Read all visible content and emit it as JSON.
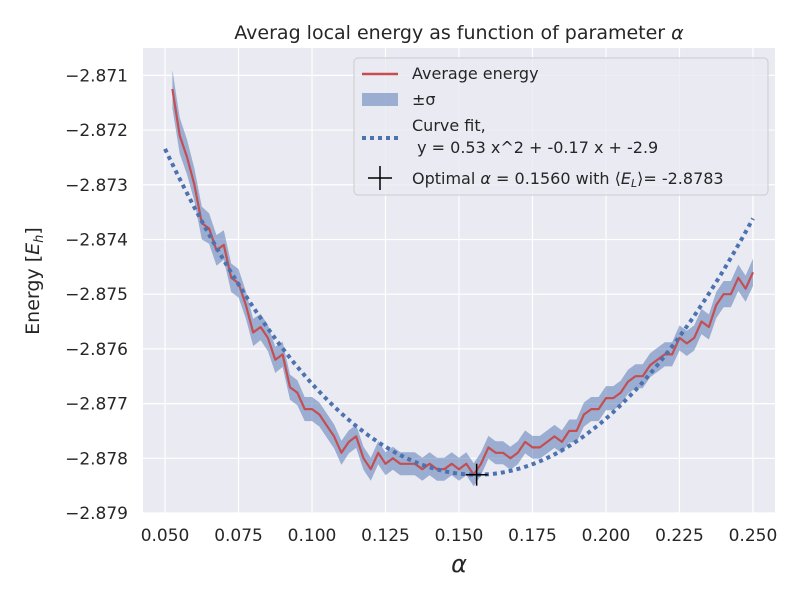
{
  "chart_data": {
    "type": "line",
    "title": "Averag local energy as function of parameter α",
    "xlabel": "α",
    "ylabel": "Energy [E_h]",
    "xlim": [
      0.0425,
      0.2575
    ],
    "ylim": [
      -2.879,
      -2.8705
    ],
    "x_ticks": [
      0.05,
      0.075,
      0.1,
      0.125,
      0.15,
      0.175,
      0.2,
      0.225,
      0.25
    ],
    "x_tick_labels": [
      "0.050",
      "0.075",
      "0.100",
      "0.125",
      "0.150",
      "0.175",
      "0.200",
      "0.225",
      "0.250"
    ],
    "y_ticks": [
      -2.879,
      -2.878,
      -2.877,
      -2.876,
      -2.875,
      -2.874,
      -2.873,
      -2.872,
      -2.871
    ],
    "y_tick_labels": [
      "−2.879",
      "−2.878",
      "−2.877",
      "−2.876",
      "−2.875",
      "−2.874",
      "−2.873",
      "−2.872",
      "−2.871"
    ],
    "grid": true,
    "legend_position": "top-right",
    "colors": {
      "background": "#eaeaf2",
      "grid": "#ffffff",
      "average": "#c44e52",
      "band": "#4c72b0",
      "fit": "#4c72b0",
      "marker": "#000000"
    },
    "series": [
      {
        "name": "Average energy",
        "x": [
          0.0525,
          0.055,
          0.0575,
          0.06,
          0.0625,
          0.065,
          0.0675,
          0.07,
          0.0725,
          0.075,
          0.0775,
          0.08,
          0.0825,
          0.085,
          0.0875,
          0.09,
          0.0925,
          0.095,
          0.0975,
          0.1,
          0.1025,
          0.105,
          0.1075,
          0.11,
          0.1125,
          0.115,
          0.1175,
          0.12,
          0.1225,
          0.125,
          0.1275,
          0.13,
          0.1325,
          0.135,
          0.1375,
          0.14,
          0.1425,
          0.145,
          0.1475,
          0.15,
          0.1525,
          0.155,
          0.1575,
          0.16,
          0.1625,
          0.165,
          0.1675,
          0.17,
          0.1725,
          0.175,
          0.1775,
          0.18,
          0.1825,
          0.185,
          0.1875,
          0.19,
          0.1925,
          0.195,
          0.1975,
          0.2,
          0.2025,
          0.205,
          0.2075,
          0.21,
          0.2125,
          0.215,
          0.2175,
          0.22,
          0.2225,
          0.225,
          0.2275,
          0.23,
          0.2325,
          0.235,
          0.2375,
          0.24,
          0.2425,
          0.245,
          0.2475,
          0.25
        ],
        "y": [
          -2.87125,
          -2.8721,
          -2.8725,
          -2.873,
          -2.8737,
          -2.8738,
          -2.8742,
          -2.8741,
          -2.8747,
          -2.8748,
          -2.8752,
          -2.8757,
          -2.8756,
          -2.8758,
          -2.8762,
          -2.8761,
          -2.8767,
          -2.8768,
          -2.8771,
          -2.8771,
          -2.8772,
          -2.8774,
          -2.8776,
          -2.8779,
          -2.8777,
          -2.8776,
          -2.878,
          -2.8782,
          -2.8779,
          -2.8781,
          -2.878,
          -2.8781,
          -2.8781,
          -2.8781,
          -2.8782,
          -2.8781,
          -2.8782,
          -2.8782,
          -2.8781,
          -2.8782,
          -2.8781,
          -2.8783,
          -2.8781,
          -2.8778,
          -2.8779,
          -2.8779,
          -2.878,
          -2.8779,
          -2.8777,
          -2.8778,
          -2.8778,
          -2.8777,
          -2.8776,
          -2.8777,
          -2.8775,
          -2.8775,
          -2.8772,
          -2.8771,
          -2.8771,
          -2.8769,
          -2.8769,
          -2.8768,
          -2.8766,
          -2.8765,
          -2.8765,
          -2.8763,
          -2.8762,
          -2.8761,
          -2.8761,
          -2.8758,
          -2.8759,
          -2.8758,
          -2.8755,
          -2.8756,
          -2.8752,
          -2.875,
          -2.875,
          -2.8747,
          -2.8749,
          -2.8746
        ],
        "std": [
          0.00035,
          0.00033,
          0.00032,
          0.0003,
          0.0003,
          0.00028,
          0.00028,
          0.00027,
          0.00026,
          0.00026,
          0.00025,
          0.00025,
          0.00024,
          0.00024,
          0.00024,
          0.00023,
          0.00023,
          0.00023,
          0.00022,
          0.00022,
          0.00022,
          0.00022,
          0.00022,
          0.00022,
          0.00021,
          0.00021,
          0.00021,
          0.00021,
          0.00021,
          0.00021,
          0.00021,
          0.00021,
          0.00021,
          0.00021,
          0.00021,
          0.00021,
          0.00021,
          0.00021,
          0.00021,
          0.00021,
          0.00021,
          0.00021,
          0.00021,
          0.00021,
          0.00021,
          0.00021,
          0.00021,
          0.00021,
          0.00021,
          0.00021,
          0.00021,
          0.00021,
          0.00021,
          0.00021,
          0.00021,
          0.00021,
          0.00022,
          0.00022,
          0.00022,
          0.00022,
          0.00022,
          0.00022,
          0.00022,
          0.00022,
          0.00022,
          0.00022,
          0.00022,
          0.00022,
          0.00022,
          0.00023,
          0.00023,
          0.00023,
          0.00023,
          0.00023,
          0.00024,
          0.00024,
          0.00024,
          0.00024,
          0.00024,
          0.00025
        ]
      }
    ],
    "band_name": "±σ",
    "fit": {
      "name": "Curve fit,\n y = 0.53 x^2 + -0.17 x + -2.9",
      "x_range": [
        0.05,
        0.25
      ],
      "vertex_x": 0.156,
      "vertex_y": -2.8783,
      "curvature": 0.53
    },
    "optimal": {
      "name": "Optimal α = 0.1560 with ⟨E_L⟩= -2.8783",
      "x": 0.156,
      "y": -2.8783
    },
    "legend": [
      {
        "label": "Average energy"
      },
      {
        "label": "±σ"
      },
      {
        "label_line1": "Curve fit,",
        "label_line2": " y = 0.53 x^2 + -0.17 x + -2.9"
      },
      {
        "label_prefix": "Optimal ",
        "label_alpha": "α",
        "label_middle": " = 0.1560 with ⟨",
        "label_e": "E",
        "label_sub": "L",
        "label_suffix": "⟩= -2.8783"
      }
    ],
    "title_prefix": "Averag local energy as function of parameter ",
    "title_alpha": "α",
    "ylabel_prefix": "Energy [",
    "ylabel_e": "E",
    "ylabel_sub": "h",
    "ylabel_suffix": "]"
  }
}
